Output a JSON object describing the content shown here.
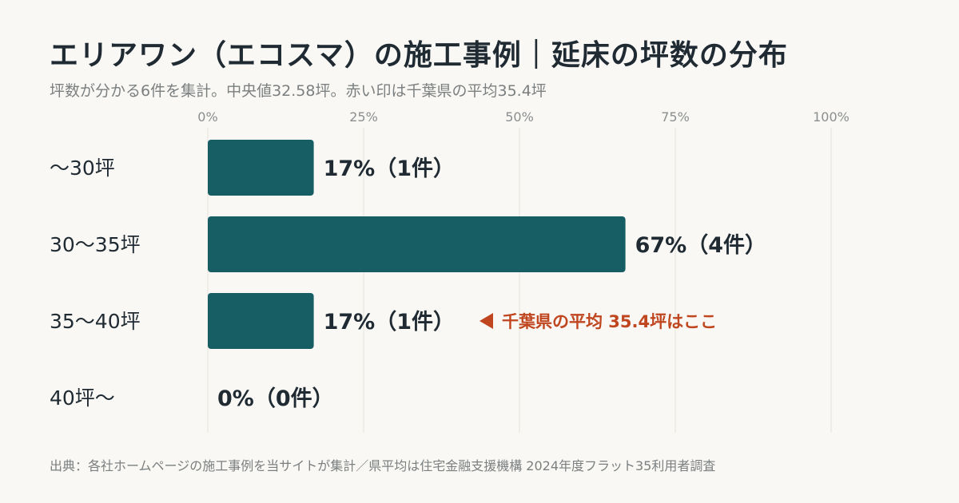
{
  "header": {
    "title": "エリアワン（エコスマ）の施工事例｜延床の坪数の分布",
    "subtitle": "坪数が分かる6件を集計。中央値32.58坪。赤い印は千葉県の平均35.4坪"
  },
  "footer": {
    "source": "出典：各社ホームページの施工事例を当サイトが集計／県平均は住宅金融支援機構 2024年度フラット35利用者調査"
  },
  "colors": {
    "bar": "#175e64",
    "accent": "#c0461f",
    "grid": "#e3e2dc",
    "background": "#f9f8f4"
  },
  "chart_data": {
    "type": "bar",
    "orientation": "horizontal",
    "categories": [
      "〜30坪",
      "30〜35坪",
      "35〜40坪",
      "40坪〜"
    ],
    "values": [
      17,
      67,
      17,
      0
    ],
    "counts": [
      1,
      4,
      1,
      0
    ],
    "value_labels": [
      "17%（1件）",
      "67%（4件）",
      "17%（1件）",
      "0%（0件）"
    ],
    "xlim": [
      0,
      100
    ],
    "x_ticks": [
      0,
      25,
      50,
      75,
      100
    ],
    "x_tick_labels": [
      "0%",
      "25%",
      "50%",
      "75%",
      "100%"
    ],
    "grid": true,
    "annotation": {
      "category_index": 2,
      "text": "千葉県の平均 35.4坪はここ"
    }
  }
}
